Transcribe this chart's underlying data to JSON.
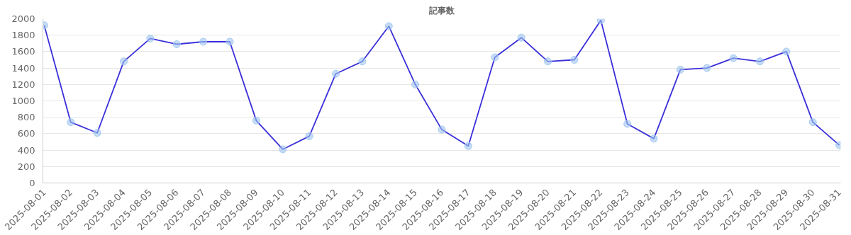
{
  "chart_data": {
    "type": "line",
    "title": "記事数",
    "categories": [
      "2025-08-01",
      "2025-08-02",
      "2025-08-03",
      "2025-08-04",
      "2025-08-05",
      "2025-08-06",
      "2025-08-07",
      "2025-08-08",
      "2025-08-09",
      "2025-08-10",
      "2025-08-11",
      "2025-08-12",
      "2025-08-13",
      "2025-08-14",
      "2025-08-15",
      "2025-08-16",
      "2025-08-17",
      "2025-08-18",
      "2025-08-19",
      "2025-08-20",
      "2025-08-21",
      "2025-08-22",
      "2025-08-23",
      "2025-08-24",
      "2025-08-25",
      "2025-08-26",
      "2025-08-27",
      "2025-08-28",
      "2025-08-29",
      "2025-08-30",
      "2025-08-31"
    ],
    "series": [
      {
        "color": "#3b2fd9",
        "values": [
          1920,
          740,
          610,
          1480,
          1760,
          1690,
          1720,
          1720,
          760,
          410,
          570,
          1330,
          1480,
          1910,
          1200,
          650,
          450,
          1530,
          1770,
          1480,
          1500,
          1980,
          720,
          540,
          1380,
          1400,
          1520,
          1480,
          1600,
          740,
          460
        ]
      }
    ],
    "ylim": [
      0,
      2000
    ],
    "yticks": [
      0,
      200,
      400,
      600,
      800,
      1000,
      1200,
      1400,
      1600,
      1800,
      2000
    ],
    "grid": "y",
    "marker": "circle",
    "line_style": "solid"
  }
}
